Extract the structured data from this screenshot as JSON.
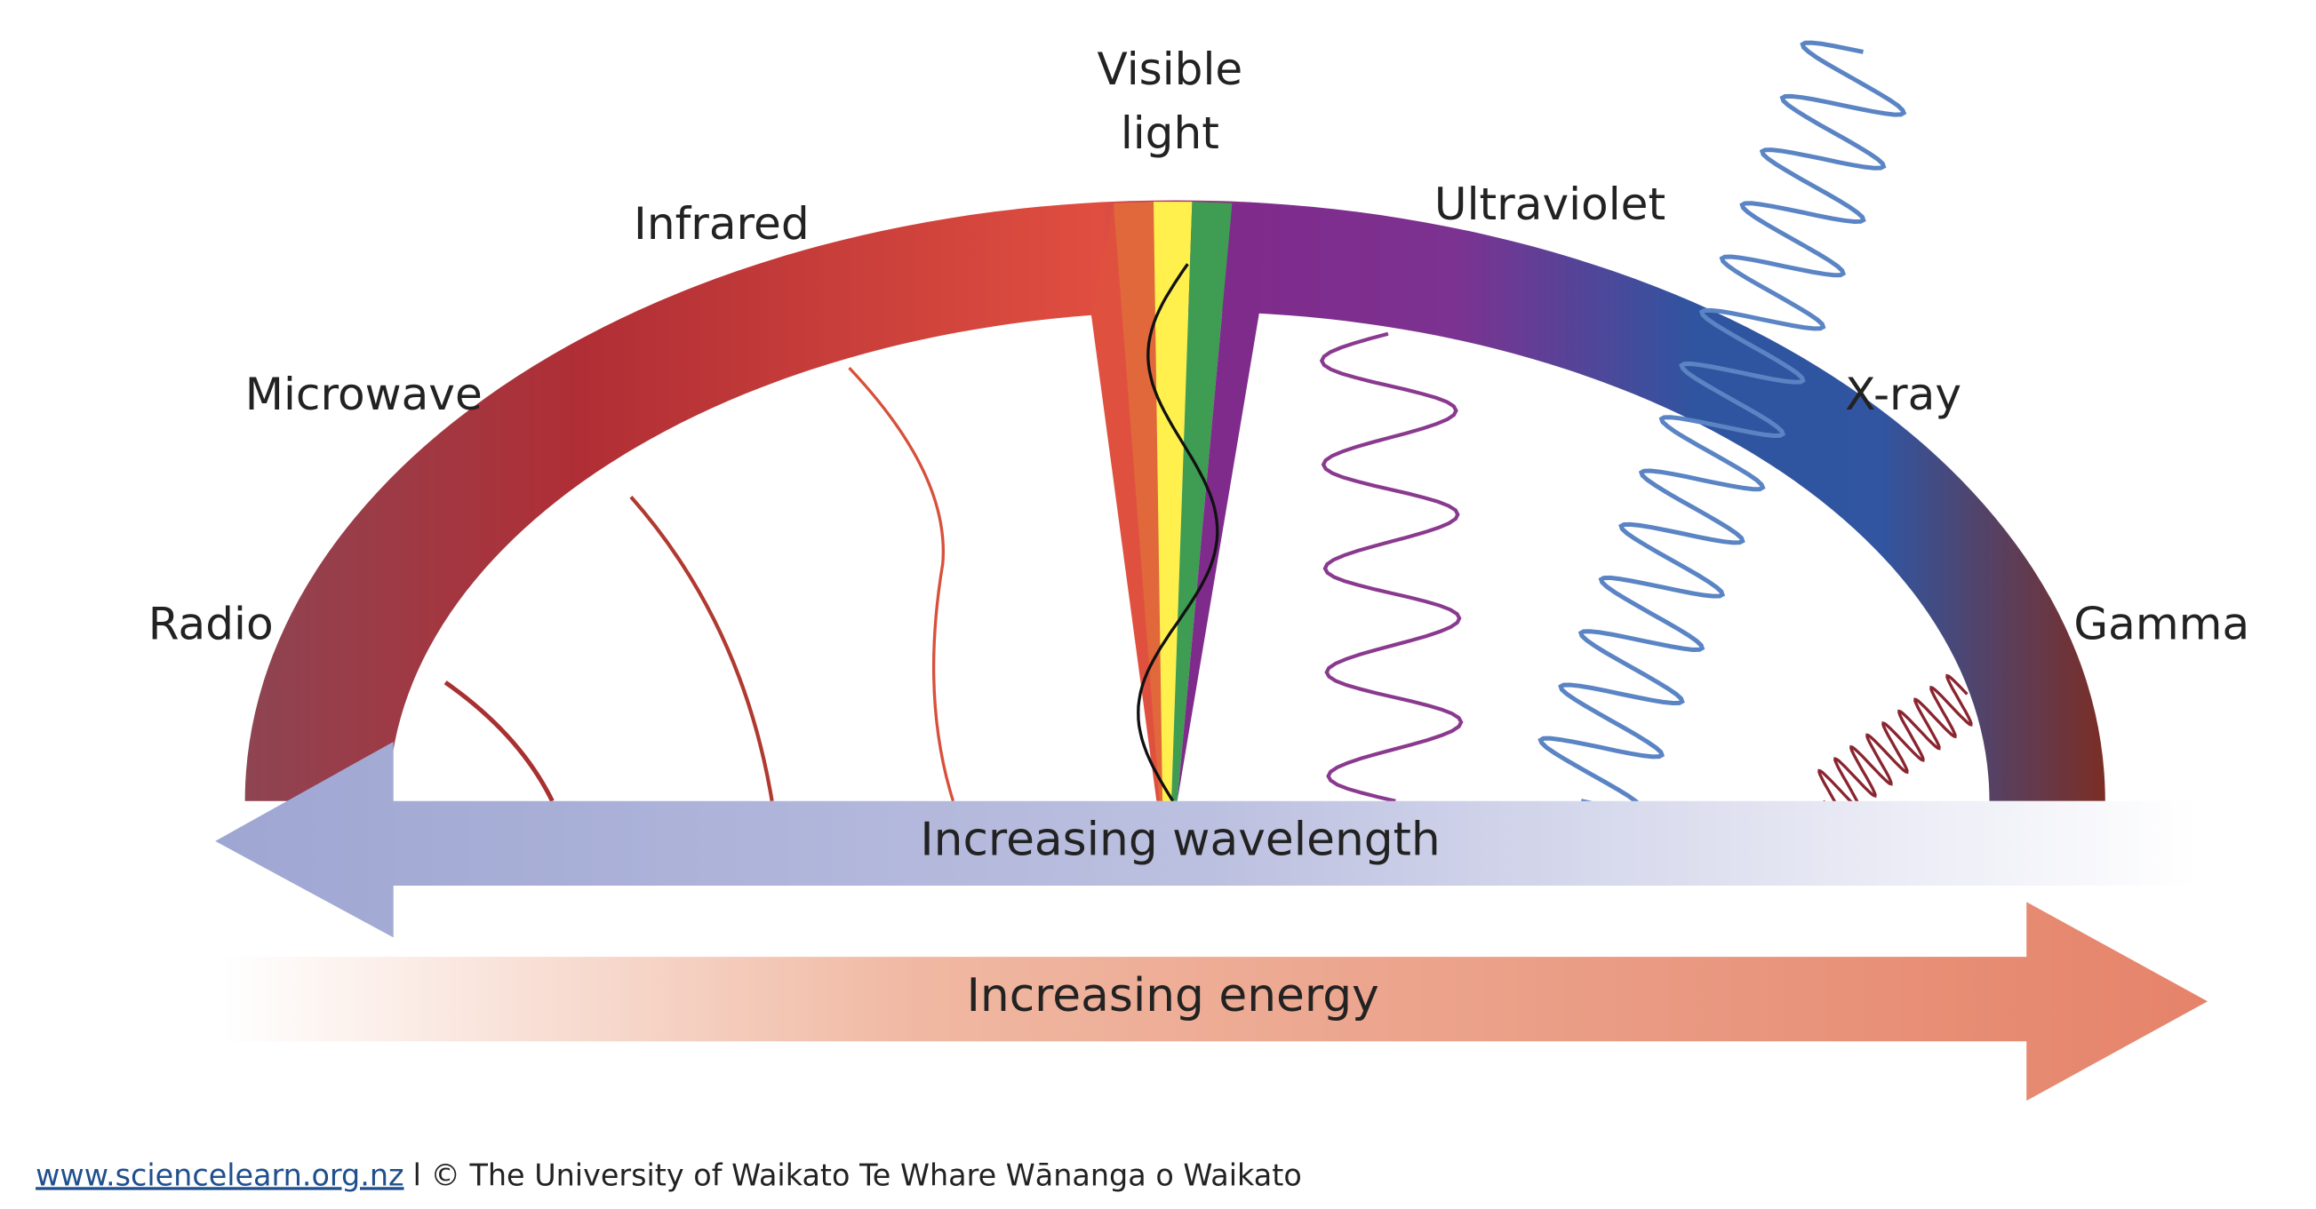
{
  "labels": {
    "radio": "Radio",
    "microwave": "Microwave",
    "infrared": "Infrared",
    "visible_light": [
      "Visible",
      "light"
    ],
    "ultraviolet": "Ultraviolet",
    "x_ray": "X-ray",
    "gamma": "Gamma"
  },
  "arrows": {
    "wavelength": "Increasing wavelength",
    "energy": "Increasing energy"
  },
  "footer": {
    "link": "www.sciencelearn.org.nz",
    "credit": "l © The University of Waikato Te Whare Wānanga o Waikato"
  }
}
